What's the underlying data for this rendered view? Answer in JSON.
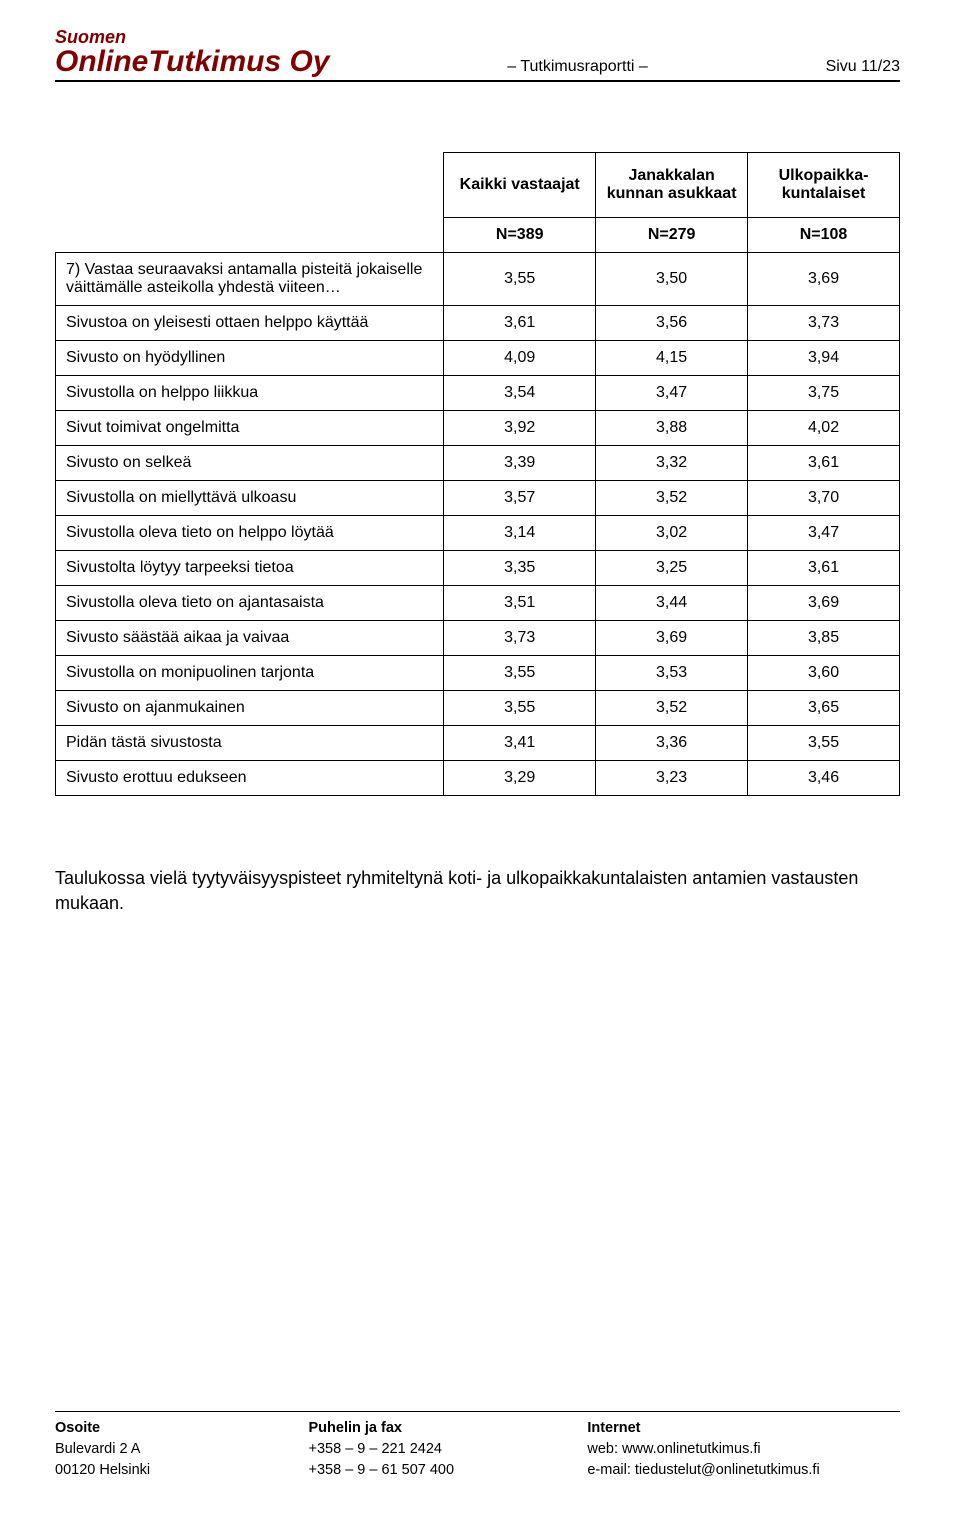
{
  "header": {
    "suomen": "Suomen",
    "company": "OnlineTutkimus Oy",
    "mid": "– Tutkimusraportti –",
    "page": "Sivu 11/23"
  },
  "table": {
    "columns": {
      "c1": "Kaikki vastaajat",
      "c2": "Janakkalan kunnan asukkaat",
      "c3": "Ulkopaikka-kuntalaiset"
    },
    "n_row": {
      "label": "",
      "c1": "N=389",
      "c2": "N=279",
      "c3": "N=108"
    },
    "question": {
      "label": "7) Vastaa seuraavaksi antamalla pisteitä jokaiselle väittämälle asteikolla yhdestä viiteen…",
      "c1": "3,55",
      "c2": "3,50",
      "c3": "3,69"
    },
    "rows": [
      {
        "label": "Sivustoa on yleisesti ottaen helppo käyttää",
        "c1": "3,61",
        "c2": "3,56",
        "c3": "3,73"
      },
      {
        "label": "Sivusto on hyödyllinen",
        "c1": "4,09",
        "c2": "4,15",
        "c3": "3,94"
      },
      {
        "label": "Sivustolla on helppo liikkua",
        "c1": "3,54",
        "c2": "3,47",
        "c3": "3,75"
      },
      {
        "label": "Sivut toimivat ongelmitta",
        "c1": "3,92",
        "c2": "3,88",
        "c3": "4,02"
      },
      {
        "label": "Sivusto on selkeä",
        "c1": "3,39",
        "c2": "3,32",
        "c3": "3,61"
      },
      {
        "label": "Sivustolla on miellyttävä ulkoasu",
        "c1": "3,57",
        "c2": "3,52",
        "c3": "3,70"
      },
      {
        "label": "Sivustolla oleva tieto on helppo löytää",
        "c1": "3,14",
        "c2": "3,02",
        "c3": "3,47"
      },
      {
        "label": "Sivustolta löytyy tarpeeksi tietoa",
        "c1": "3,35",
        "c2": "3,25",
        "c3": "3,61"
      },
      {
        "label": "Sivustolla oleva tieto on ajantasaista",
        "c1": "3,51",
        "c2": "3,44",
        "c3": "3,69"
      },
      {
        "label": "Sivusto säästää aikaa ja vaivaa",
        "c1": "3,73",
        "c2": "3,69",
        "c3": "3,85"
      },
      {
        "label": "Sivustolla on monipuolinen tarjonta",
        "c1": "3,55",
        "c2": "3,53",
        "c3": "3,60"
      },
      {
        "label": "Sivusto on ajanmukainen",
        "c1": "3,55",
        "c2": "3,52",
        "c3": "3,65"
      },
      {
        "label": "Pidän tästä sivustosta",
        "c1": "3,41",
        "c2": "3,36",
        "c3": "3,55"
      },
      {
        "label": "Sivusto erottuu edukseen",
        "c1": "3,29",
        "c2": "3,23",
        "c3": "3,46"
      }
    ]
  },
  "body_note": "Taulukossa vielä tyytyväisyyspisteet ryhmiteltynä koti- ja ulkopaikkakuntalaisten antamien vastausten mukaan.",
  "footer": {
    "c1": {
      "h": "Osoite",
      "l1": "Bulevardi 2 A",
      "l2": "00120 Helsinki"
    },
    "c2": {
      "h": "Puhelin ja fax",
      "l1": "+358 – 9 – 221 2424",
      "l2": "+358 – 9 – 61 507 400"
    },
    "c3": {
      "h": "Internet",
      "l1": "web: www.onlinetutkimus.fi",
      "l2": "e-mail: tiedustelut@onlinetutkimus.fi"
    }
  },
  "style": {
    "text_color": "#000000",
    "brand_color": "#800000",
    "border_color": "#000000",
    "background_color": "#ffffff",
    "base_font_size_pt": 12,
    "header_font_size_pt": 22,
    "table_font_size_pt": 12
  }
}
